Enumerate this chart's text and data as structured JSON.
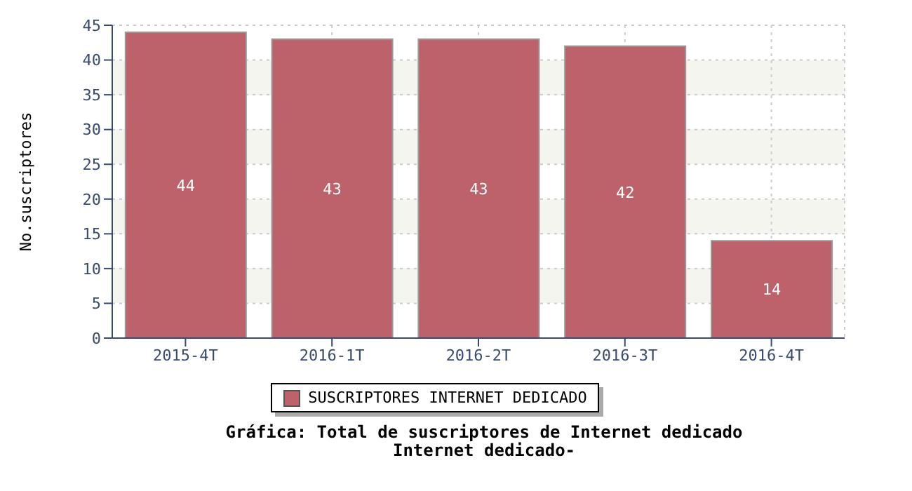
{
  "chart_data": {
    "type": "bar",
    "title": "Gráfica: Total de suscriptores de Internet dedicado",
    "subtitle": "Internet dedicado-",
    "ylabel": "No.suscriptores",
    "categories": [
      "2015-4T",
      "2016-1T",
      "2016-2T",
      "2016-3T",
      "2016-4T"
    ],
    "series": [
      {
        "name": "SUSCRIPTORES INTERNET DEDICADO",
        "color": "#bd616a",
        "values": [
          44,
          43,
          43,
          42,
          14
        ]
      }
    ],
    "ylim": [
      0,
      45
    ],
    "yticks": [
      0,
      5,
      10,
      15,
      20,
      25,
      30,
      35,
      40,
      45
    ],
    "grid": true,
    "legend": "bottom",
    "data_labels": true
  }
}
